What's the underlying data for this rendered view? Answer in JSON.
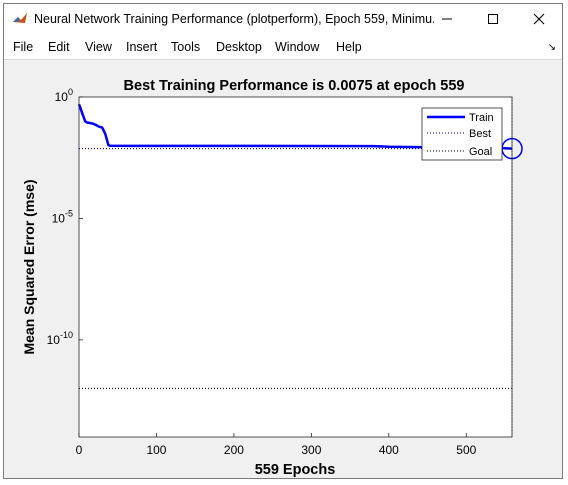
{
  "window": {
    "title": "Neural Network Training Performance (plotperform), Epoch 559, Minimu...",
    "controls": [
      "minimize",
      "maximize",
      "close"
    ]
  },
  "menu": [
    "File",
    "Edit",
    "View",
    "Insert",
    "Tools",
    "Desktop",
    "Window",
    "Help"
  ],
  "chart_data": {
    "type": "line",
    "title": "Best Training Performance is 0.0075 at epoch 559",
    "xlabel": "559 Epochs",
    "ylabel": "Mean Squared Error  (mse)",
    "y_scale": "log",
    "xlim": [
      0,
      559
    ],
    "ylim_exponent": [
      -14,
      0
    ],
    "x_ticks": [
      "0",
      "100",
      "200",
      "300",
      "400",
      "500"
    ],
    "y_ticks": [
      {
        "base": "10",
        "exp": "0"
      },
      {
        "base": "10",
        "exp": "-5"
      },
      {
        "base": "10",
        "exp": "-10"
      }
    ],
    "legend": {
      "position": "top-right",
      "entries": [
        "Train",
        "Best",
        "Goal"
      ]
    },
    "series": [
      {
        "name": "Train",
        "style": "solid",
        "color": "#0000ff",
        "x": [
          0,
          2,
          4,
          6,
          8,
          10,
          14,
          18,
          22,
          26,
          30,
          34,
          38,
          40,
          100,
          200,
          300,
          380,
          400,
          450,
          500,
          540,
          559
        ],
        "y": [
          0.5,
          0.35,
          0.22,
          0.15,
          0.1,
          0.09,
          0.085,
          0.08,
          0.07,
          0.06,
          0.055,
          0.03,
          0.0105,
          0.0098,
          0.0097,
          0.0097,
          0.0096,
          0.0095,
          0.009,
          0.0085,
          0.0082,
          0.008,
          0.0075
        ]
      },
      {
        "name": "Best",
        "style": "dotted",
        "color": "#000080",
        "y_const": 0.0075,
        "x_const": 559
      },
      {
        "name": "Goal",
        "style": "dotted",
        "color": "#000000",
        "y_const": 1e-12
      }
    ],
    "best_marker": {
      "x": 559,
      "y": 0.0075
    }
  }
}
